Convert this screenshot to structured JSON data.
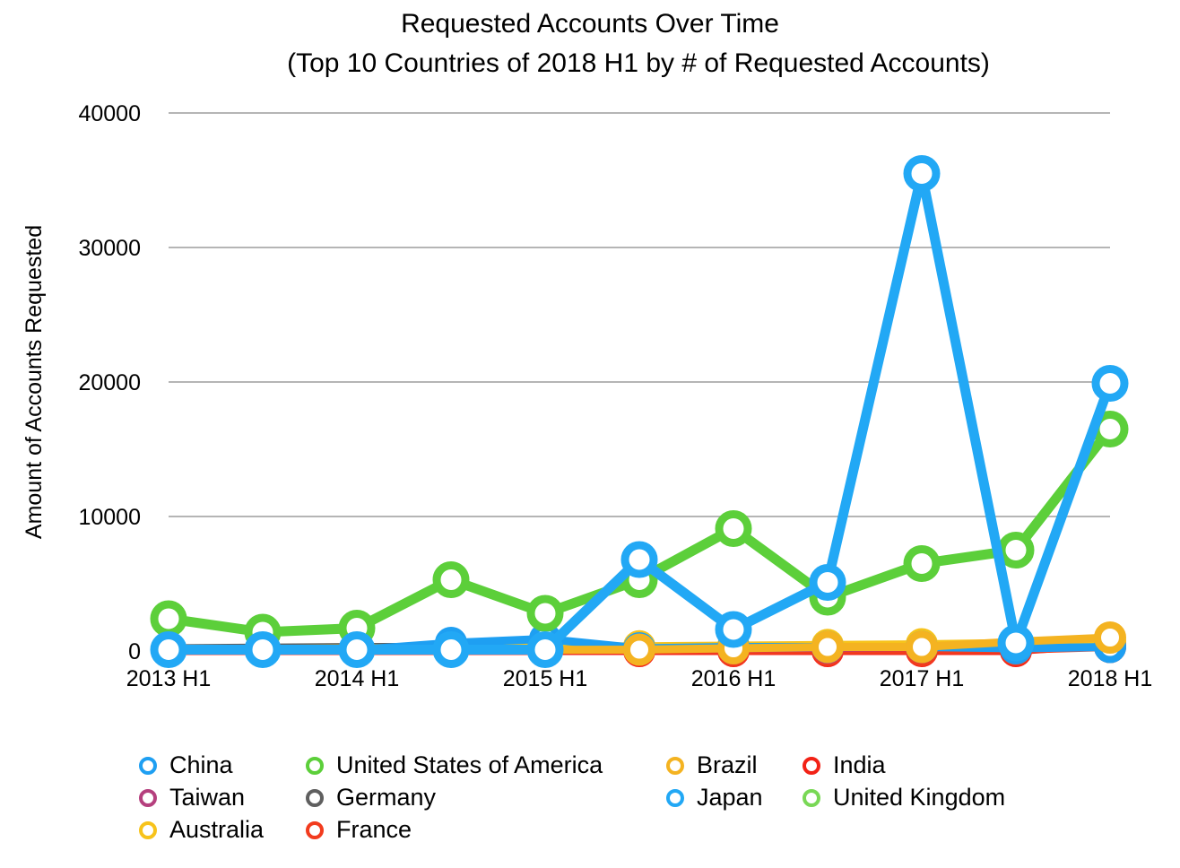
{
  "chart_data": {
    "type": "line",
    "title": "Requested Accounts Over Time",
    "subtitle": "(Top 10 Countries of 2018 H1 by # of Requested Accounts)",
    "ylabel": "Amount of Accounts Requested",
    "xlabel": "",
    "ylim": [
      0,
      40000
    ],
    "yticks": [
      "0",
      "10000",
      "20000",
      "30000",
      "40000"
    ],
    "yticks_values": [
      0,
      10000,
      20000,
      30000,
      40000
    ],
    "grid": "horizontal",
    "legend_position": "bottom",
    "categories": [
      "2013 H1",
      "2013 H2",
      "2014 H1",
      "2014 H2",
      "2015 H1",
      "2015 H2",
      "2016 H1",
      "2016 H2",
      "2017 H1",
      "2017 H2",
      "2018 H1"
    ],
    "xtick_labels": [
      "2013 H1",
      "",
      "2014 H1",
      "",
      "2015 H1",
      "",
      "2016 H1",
      "",
      "2017 H1",
      "",
      "2018 H1"
    ],
    "series": [
      {
        "name": "China",
        "color": "#1E9FF2",
        "values": [
          100,
          50,
          80,
          600,
          900,
          200,
          300,
          300,
          300,
          200,
          300
        ]
      },
      {
        "name": "Taiwan",
        "color": "#B5407E",
        "values": [
          50,
          60,
          80,
          100,
          120,
          150,
          200,
          250,
          300,
          350,
          500
        ]
      },
      {
        "name": "Australia",
        "color": "#F7C31B",
        "values": [
          100,
          150,
          200,
          250,
          300,
          350,
          400,
          450,
          500,
          600,
          700
        ]
      },
      {
        "name": "United States of America",
        "color": "#5CCF3A",
        "values": [
          2400,
          1400,
          1700,
          5300,
          2800,
          5300,
          9100,
          4000,
          6500,
          7500,
          16500
        ]
      },
      {
        "name": "Germany",
        "color": "#5F5F5F",
        "values": [
          200,
          250,
          300,
          300,
          250,
          300,
          350,
          300,
          300,
          400,
          400
        ]
      },
      {
        "name": "France",
        "color": "#F23B1E",
        "values": [
          50,
          60,
          50,
          80,
          60,
          100,
          50,
          80,
          60,
          100,
          300
        ]
      },
      {
        "name": "Brazil",
        "color": "#F4B321",
        "values": [
          50,
          60,
          70,
          80,
          90,
          100,
          200,
          300,
          300,
          700,
          1000
        ]
      },
      {
        "name": "Japan",
        "color": "#22A8F5",
        "values": [
          100,
          100,
          100,
          100,
          100,
          6800,
          1600,
          5100,
          35500,
          600,
          19900
        ]
      },
      {
        "name": "India",
        "color": "#F22216",
        "values": [
          0,
          0,
          0,
          0,
          0,
          0,
          0,
          0,
          0,
          0,
          500
        ]
      },
      {
        "name": "United Kingdom",
        "color": "#79D856",
        "values": [
          100,
          100,
          150,
          150,
          150,
          200,
          200,
          250,
          300,
          400,
          600
        ]
      }
    ]
  },
  "legend": {
    "items": [
      {
        "name": "China",
        "color": "#1E9FF2"
      },
      {
        "name": "Taiwan",
        "color": "#B5407E"
      },
      {
        "name": "Australia",
        "color": "#F7C31B"
      },
      {
        "name": "United States of America",
        "color": "#5CCF3A"
      },
      {
        "name": "Germany",
        "color": "#5F5F5F"
      },
      {
        "name": "France",
        "color": "#F23B1E"
      },
      {
        "name": "Brazil",
        "color": "#F4B321"
      },
      {
        "name": "Japan",
        "color": "#22A8F5"
      },
      {
        "name": "India",
        "color": "#F22216"
      },
      {
        "name": "United Kingdom",
        "color": "#79D856"
      }
    ]
  }
}
